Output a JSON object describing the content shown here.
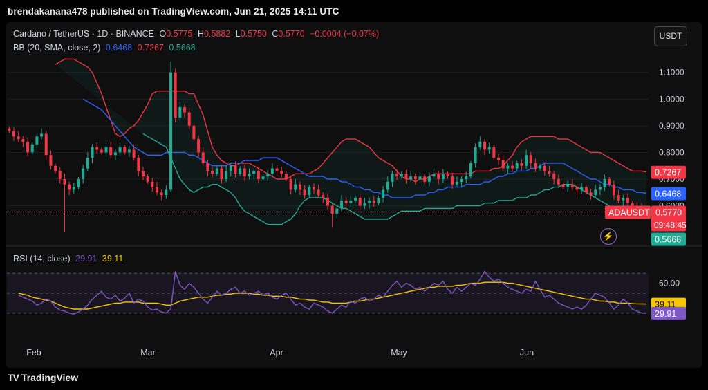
{
  "header": {
    "published": "brendakanana478 published on TradingView.com, Jun 21, 2025 14:11 UTC"
  },
  "legend": {
    "symbol": "Cardano / TetherUS · 1D · BINANCE",
    "open_label": "O",
    "open": "0.5775",
    "high_label": "H",
    "high": "0.5882",
    "low_label": "L",
    "low": "0.5750",
    "close_label": "C",
    "close": "0.5770",
    "change": "−0.0004 (−0.07%)",
    "bb_label": "BB (20, SMA, close, 2)",
    "bb_upper": "0.7267",
    "bb_basis": "0.6468",
    "bb_lower": "0.5668",
    "rsi_label": "RSI (14, close)",
    "rsi_value": "29.91",
    "rsi_ma": "39.11"
  },
  "currency_button": "USDT",
  "branding": {
    "name": "TradingView",
    "mark": "TV"
  },
  "icons": {
    "lightning": "lightning-icon",
    "logo": "tradingview-logo-icon"
  },
  "colors": {
    "up": "#22ab94",
    "down": "#f23645",
    "bb_upper": "#f23645",
    "bb_basis": "#2962ff",
    "bb_lower": "#22ab94",
    "rsi": "#7e57c2",
    "rsi_ma": "#f7c800"
  },
  "chart_data": [
    {
      "type": "candlestick",
      "title": "Cardano / TetherUS · 1D · BINANCE",
      "x_ticks": [
        "Feb",
        "Mar",
        "Apr",
        "May",
        "Jun"
      ],
      "y_ticks": [
        "1.1000",
        "1.0000",
        "0.9000",
        "0.8000",
        "0.7000",
        "0.6000"
      ],
      "ylim": [
        0.49,
        1.19
      ],
      "price_labels": [
        {
          "name": "BB upper",
          "value": "0.7267",
          "color": "#f23645"
        },
        {
          "name": "BB basis",
          "value": "0.6468",
          "color": "#2962ff"
        },
        {
          "name": "ADAUSDT",
          "value": "0.5770",
          "countdown": "09:48:45",
          "color": "#f23645"
        },
        {
          "name": "BB lower",
          "value": "0.5668",
          "color": "#22ab94"
        }
      ],
      "close": [
        0.88,
        0.86,
        0.85,
        0.84,
        0.8,
        0.83,
        0.86,
        0.87,
        0.79,
        0.75,
        0.73,
        0.7,
        0.68,
        0.66,
        0.67,
        0.7,
        0.74,
        0.78,
        0.82,
        0.81,
        0.8,
        0.82,
        0.79,
        0.8,
        0.82,
        0.8,
        0.81,
        0.78,
        0.73,
        0.71,
        0.69,
        0.67,
        0.65,
        0.64,
        0.66,
        1.1,
        0.93,
        0.97,
        0.95,
        0.9,
        0.85,
        0.8,
        0.76,
        0.73,
        0.72,
        0.74,
        0.7,
        0.73,
        0.75,
        0.72,
        0.74,
        0.71,
        0.72,
        0.73,
        0.7,
        0.71,
        0.72,
        0.74,
        0.73,
        0.72,
        0.7,
        0.66,
        0.68,
        0.66,
        0.64,
        0.67,
        0.66,
        0.64,
        0.63,
        0.6,
        0.57,
        0.59,
        0.62,
        0.61,
        0.62,
        0.63,
        0.6,
        0.61,
        0.62,
        0.61,
        0.63,
        0.66,
        0.69,
        0.72,
        0.71,
        0.72,
        0.7,
        0.71,
        0.7,
        0.71,
        0.69,
        0.71,
        0.72,
        0.7,
        0.72,
        0.71,
        0.68,
        0.69,
        0.7,
        0.71,
        0.76,
        0.82,
        0.84,
        0.81,
        0.82,
        0.78,
        0.77,
        0.74,
        0.75,
        0.74,
        0.76,
        0.75,
        0.79,
        0.76,
        0.74,
        0.75,
        0.73,
        0.72,
        0.7,
        0.68,
        0.67,
        0.68,
        0.67,
        0.66,
        0.67,
        0.65,
        0.64,
        0.66,
        0.67,
        0.7,
        0.68,
        0.64,
        0.62,
        0.63,
        0.61,
        0.6,
        0.59,
        0.58,
        0.577
      ],
      "bb_upper": [
        1.13,
        1.14,
        1.15,
        1.15,
        1.15,
        1.14,
        1.13,
        1.12,
        1.1,
        1.06,
        1.02,
        0.97,
        0.92,
        0.87,
        0.86,
        0.87,
        0.89,
        0.9,
        0.92,
        0.95,
        0.98,
        1.02,
        1.03,
        1.03,
        1.03,
        1.03,
        1.03,
        1.03,
        1.03,
        1.02,
        1.02,
        0.98,
        0.94,
        0.88,
        0.82,
        0.79,
        0.77,
        0.76,
        0.75,
        0.75,
        0.76,
        0.76,
        0.76,
        0.75,
        0.74,
        0.73,
        0.72,
        0.71,
        0.7,
        0.7,
        0.7,
        0.71,
        0.72,
        0.72,
        0.72,
        0.72,
        0.73,
        0.74,
        0.76,
        0.78,
        0.8,
        0.82,
        0.84,
        0.85,
        0.85,
        0.85,
        0.84,
        0.83,
        0.82,
        0.8,
        0.78,
        0.77,
        0.76,
        0.75,
        0.73,
        0.71,
        0.7,
        0.7,
        0.69,
        0.7,
        0.7,
        0.71,
        0.72,
        0.72,
        0.72,
        0.72,
        0.72,
        0.72,
        0.72,
        0.72,
        0.72,
        0.73,
        0.73,
        0.73,
        0.73,
        0.74,
        0.74,
        0.75,
        0.77,
        0.79,
        0.82,
        0.84,
        0.85,
        0.86,
        0.86,
        0.86,
        0.86,
        0.86,
        0.86,
        0.85,
        0.85,
        0.85,
        0.84,
        0.83,
        0.82,
        0.81,
        0.8,
        0.8,
        0.8,
        0.79,
        0.78,
        0.77,
        0.76,
        0.75,
        0.74,
        0.73,
        0.73,
        0.73,
        0.7267
      ],
      "bb_basis": [
        1.0,
        0.99,
        0.98,
        0.97,
        0.96,
        0.94,
        0.92,
        0.9,
        0.88,
        0.86,
        0.84,
        0.82,
        0.81,
        0.8,
        0.79,
        0.79,
        0.79,
        0.79,
        0.8,
        0.8,
        0.8,
        0.8,
        0.8,
        0.79,
        0.79,
        0.78,
        0.77,
        0.76,
        0.75,
        0.75,
        0.75,
        0.75,
        0.76,
        0.76,
        0.76,
        0.77,
        0.77,
        0.77,
        0.77,
        0.78,
        0.78,
        0.78,
        0.78,
        0.77,
        0.76,
        0.75,
        0.74,
        0.73,
        0.72,
        0.71,
        0.71,
        0.71,
        0.71,
        0.7,
        0.7,
        0.7,
        0.69,
        0.69,
        0.68,
        0.67,
        0.67,
        0.66,
        0.66,
        0.65,
        0.65,
        0.64,
        0.64,
        0.63,
        0.63,
        0.63,
        0.63,
        0.63,
        0.64,
        0.64,
        0.64,
        0.65,
        0.65,
        0.66,
        0.66,
        0.67,
        0.67,
        0.67,
        0.67,
        0.68,
        0.68,
        0.68,
        0.68,
        0.69,
        0.69,
        0.7,
        0.71,
        0.71,
        0.72,
        0.72,
        0.73,
        0.73,
        0.73,
        0.74,
        0.74,
        0.75,
        0.76,
        0.76,
        0.76,
        0.76,
        0.76,
        0.75,
        0.74,
        0.73,
        0.72,
        0.71,
        0.7,
        0.7,
        0.69,
        0.68,
        0.68,
        0.67,
        0.67,
        0.66,
        0.66,
        0.66,
        0.65,
        0.65,
        0.6468
      ],
      "bb_lower": [
        0.87,
        0.86,
        0.85,
        0.84,
        0.83,
        0.82,
        0.78,
        0.74,
        0.7,
        0.68,
        0.66,
        0.65,
        0.66,
        0.67,
        0.67,
        0.68,
        0.68,
        0.67,
        0.66,
        0.65,
        0.63,
        0.6,
        0.58,
        0.57,
        0.56,
        0.55,
        0.54,
        0.53,
        0.53,
        0.53,
        0.53,
        0.54,
        0.55,
        0.57,
        0.6,
        0.62,
        0.63,
        0.63,
        0.63,
        0.63,
        0.62,
        0.61,
        0.6,
        0.59,
        0.59,
        0.58,
        0.57,
        0.56,
        0.55,
        0.55,
        0.55,
        0.55,
        0.55,
        0.55,
        0.56,
        0.57,
        0.58,
        0.58,
        0.58,
        0.58,
        0.58,
        0.59,
        0.59,
        0.59,
        0.59,
        0.59,
        0.59,
        0.59,
        0.6,
        0.6,
        0.6,
        0.6,
        0.6,
        0.6,
        0.61,
        0.61,
        0.61,
        0.62,
        0.62,
        0.62,
        0.62,
        0.63,
        0.63,
        0.63,
        0.64,
        0.64,
        0.65,
        0.66,
        0.66,
        0.67,
        0.67,
        0.68,
        0.68,
        0.68,
        0.67,
        0.66,
        0.65,
        0.64,
        0.63,
        0.62,
        0.61,
        0.6,
        0.59,
        0.59,
        0.59,
        0.59,
        0.58,
        0.58,
        0.57,
        0.5668
      ]
    },
    {
      "type": "line",
      "title": "RSI (14, close)",
      "y_ticks": [
        "60.00"
      ],
      "ylim": [
        18,
        82
      ],
      "price_labels": [
        {
          "name": "RSI-based MA",
          "value": "39.11",
          "color": "#f7c800"
        },
        {
          "name": "RSI",
          "value": "29.91",
          "color": "#7e57c2"
        }
      ],
      "levels": [
        70,
        50,
        30
      ],
      "series": [
        {
          "name": "RSI",
          "values": [
            48,
            46,
            44,
            42,
            38,
            40,
            44,
            42,
            36,
            33,
            32,
            30,
            29,
            31,
            34,
            38,
            44,
            48,
            52,
            46,
            44,
            48,
            42,
            45,
            50,
            40,
            44,
            42,
            36,
            33,
            34,
            31,
            30,
            34,
            72,
            58,
            54,
            60,
            56,
            50,
            44,
            40,
            46,
            52,
            48,
            50,
            54,
            56,
            50,
            52,
            48,
            50,
            52,
            48,
            50,
            46,
            44,
            48,
            50,
            44,
            38,
            40,
            36,
            34,
            40,
            38,
            36,
            32,
            30,
            34,
            38,
            36,
            42,
            40,
            44,
            46,
            42,
            44,
            48,
            46,
            52,
            58,
            62,
            56,
            60,
            58,
            54,
            56,
            52,
            56,
            60,
            58,
            62,
            54,
            50,
            56,
            52,
            56,
            60,
            58,
            64,
            72,
            66,
            62,
            64,
            60,
            56,
            54,
            52,
            50,
            54,
            52,
            62,
            54,
            46,
            48,
            44,
            40,
            38,
            36,
            34,
            36,
            34,
            38,
            44,
            50,
            48,
            46,
            40,
            34,
            38,
            44,
            40,
            34,
            32,
            30,
            29.91
          ]
        },
        {
          "name": "RSI-based MA",
          "values": [
            50,
            49,
            48,
            46,
            45,
            44,
            43,
            42,
            40,
            38,
            36,
            35,
            34,
            34,
            34,
            34,
            35,
            36,
            37,
            38,
            39,
            40,
            40,
            41,
            41,
            41,
            41,
            40,
            40,
            40,
            40,
            39,
            38,
            38,
            40,
            42,
            43,
            44,
            45,
            46,
            46,
            46,
            47,
            48,
            48,
            49,
            49,
            50,
            50,
            50,
            50,
            49,
            49,
            48,
            48,
            47,
            47,
            47,
            46,
            46,
            45,
            44,
            44,
            43,
            43,
            42,
            41,
            41,
            40,
            40,
            40,
            40,
            41,
            42,
            42,
            43,
            44,
            44,
            45,
            46,
            47,
            48,
            49,
            50,
            51,
            52,
            53,
            54,
            55,
            56,
            56,
            57,
            57,
            57,
            57,
            58,
            58,
            59,
            60,
            60,
            60,
            61,
            61,
            61,
            61,
            61,
            60,
            60,
            59,
            58,
            57,
            56,
            55,
            54,
            53,
            52,
            51,
            50,
            49,
            48,
            47,
            46,
            45,
            44,
            44,
            43,
            42,
            42,
            41,
            41,
            40,
            40,
            40,
            39.5,
            39.3,
            39.2,
            39.11
          ]
        }
      ]
    }
  ]
}
